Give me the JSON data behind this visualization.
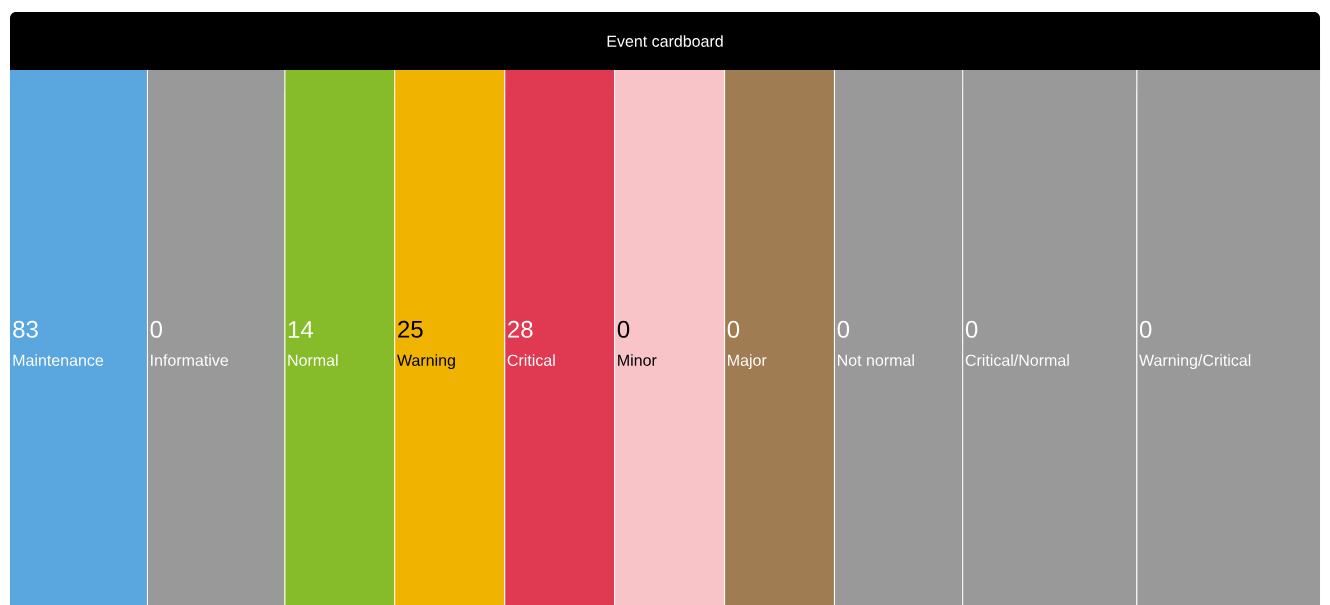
{
  "chart_data": {
    "type": "other",
    "title": "Event cardboard",
    "categories": [
      "Maintenance",
      "Informative",
      "Normal",
      "Warning",
      "Critical",
      "Minor",
      "Major",
      "Not normal",
      "Critical/Normal",
      "Warning/Critical"
    ],
    "values": [
      83,
      0,
      14,
      25,
      28,
      0,
      0,
      0,
      0,
      0
    ],
    "data_labels": true,
    "colors": [
      "#5aa6de",
      "#999999",
      "#86bc2a",
      "#f0b400",
      "#e03a52",
      "#f9c4c8",
      "#a07c52",
      "#999999",
      "#999999",
      "#999999"
    ]
  }
}
